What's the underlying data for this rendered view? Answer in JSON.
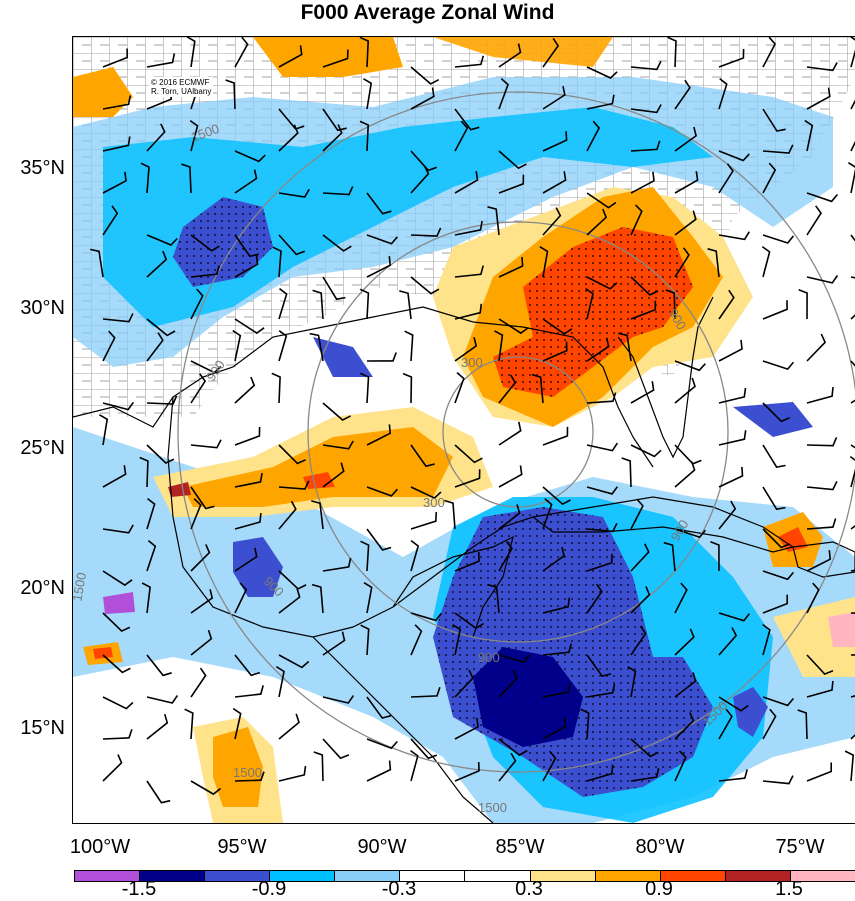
{
  "title": "F000 Average Zonal Wind",
  "credit": {
    "line1": "© 2016 ECMWF",
    "line2": "R. Torn, UAlbany"
  },
  "lat_labels": [
    "35°N",
    "30°N",
    "25°N",
    "20°N",
    "15°N"
  ],
  "lon_labels": [
    "100°W",
    "95°W",
    "90°W",
    "85°W",
    "80°W",
    "75°W"
  ],
  "contour_labels": [
    "1500",
    "900",
    "300",
    "300",
    "900",
    "900",
    "1500",
    "1500",
    "1500",
    "1500",
    "900",
    "900"
  ],
  "colorbar": {
    "colors": [
      "#b14fd8",
      "#00008b",
      "#3c4fd0",
      "#00bfff",
      "#87cefa",
      "#ffffff",
      "#ffffff",
      "#ffe38a",
      "#ffa500",
      "#ff4500",
      "#b22222",
      "#ffb6c1"
    ],
    "labels": [
      "-1.5",
      "-0.9",
      "-0.3",
      "0.3",
      "0.9",
      "1.5"
    ]
  },
  "map": {
    "extent": {
      "lon_min": -101.0,
      "lon_max": -73.0,
      "lat_min": 11.5,
      "lat_max": 40.0
    },
    "style": {
      "state_county_borders": "black",
      "coastlines": "black",
      "range_circles": "gray",
      "wind_barbs": "black",
      "stippling": "black dots"
    }
  }
}
